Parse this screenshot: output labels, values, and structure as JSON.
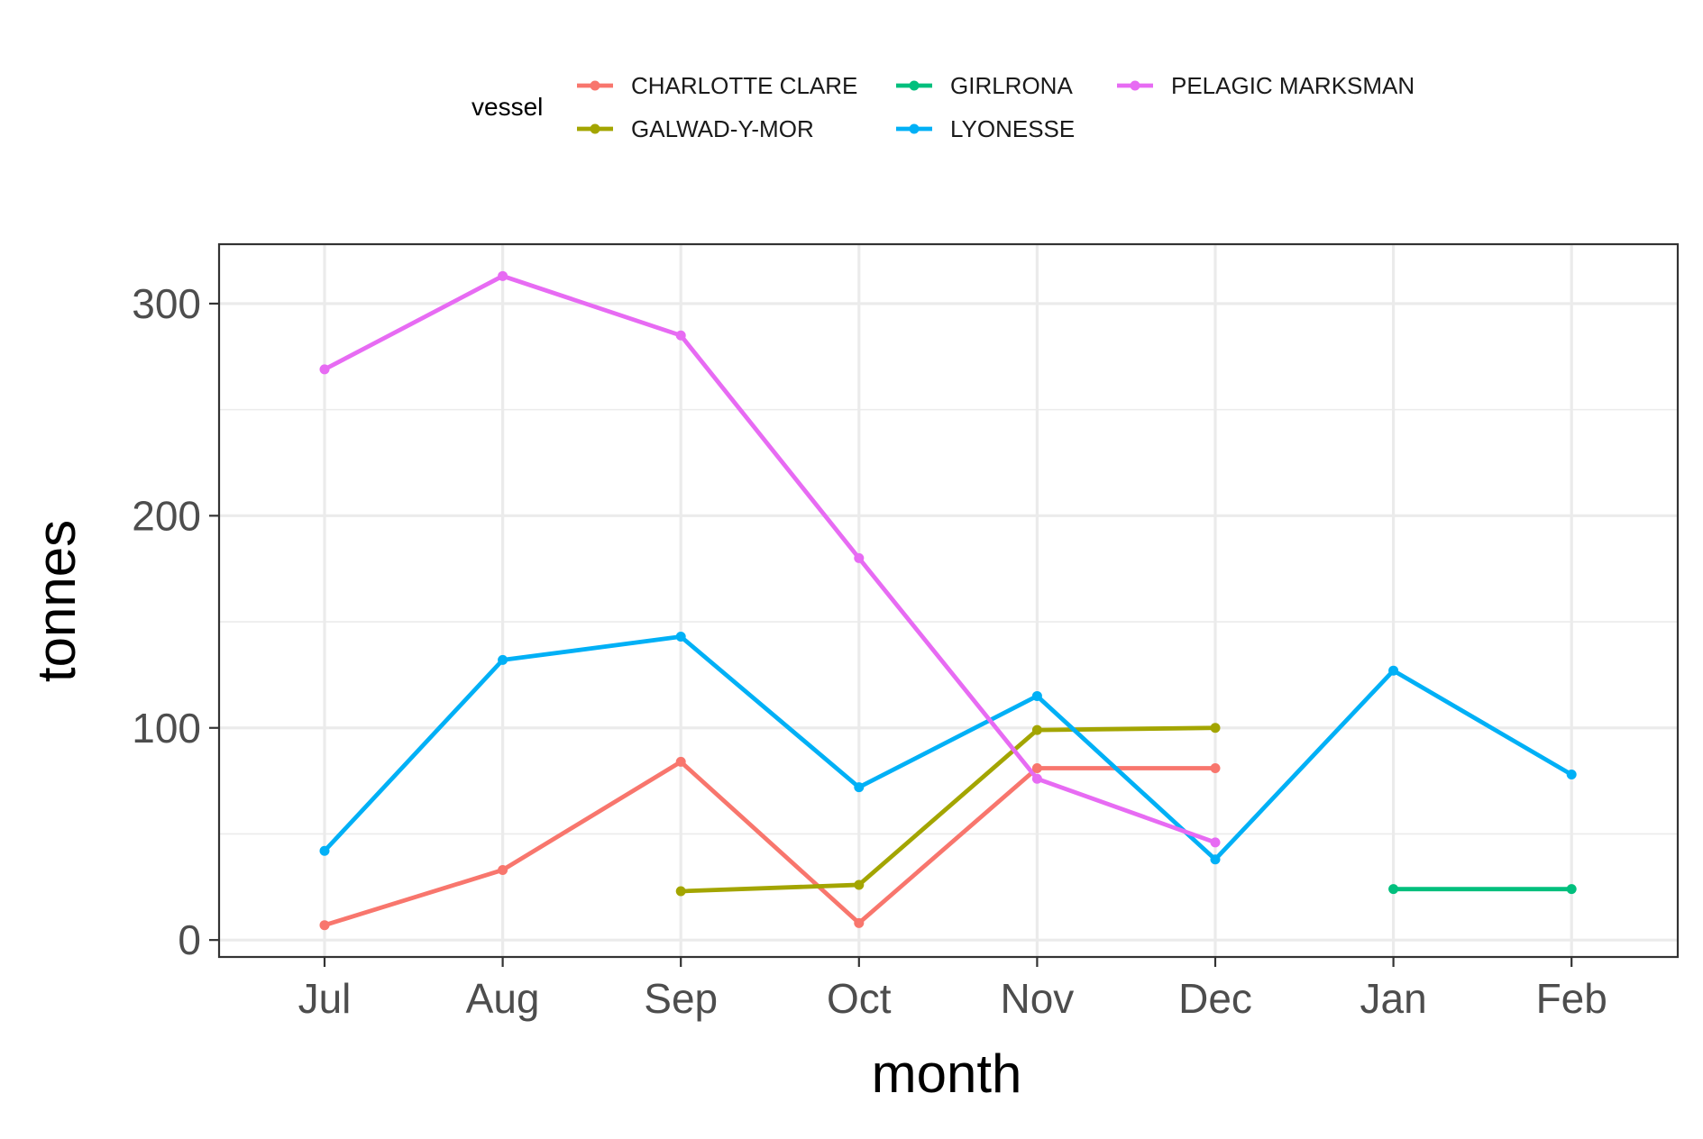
{
  "chart_data": {
    "type": "line",
    "title": "",
    "xlabel": "month",
    "ylabel": "tonnes",
    "categories": [
      "Jul",
      "Aug",
      "Sep",
      "Oct",
      "Nov",
      "Dec",
      "Jan",
      "Feb"
    ],
    "ylim": [
      -8,
      328
    ],
    "yticks": [
      0,
      100,
      200,
      300
    ],
    "grid": true,
    "legend": {
      "title": "vessel",
      "position": "top",
      "entries": [
        "CHARLOTTE CLARE",
        "GALWAD-Y-MOR",
        "GIRLRONA",
        "LYONESSE",
        "PELAGIC MARKSMAN"
      ]
    },
    "series": [
      {
        "name": "CHARLOTTE CLARE",
        "color": "#F8766D",
        "values": [
          7,
          33,
          84,
          8,
          81,
          81,
          null,
          null
        ]
      },
      {
        "name": "GALWAD-Y-MOR",
        "color": "#A3A500",
        "values": [
          null,
          null,
          23,
          26,
          99,
          100,
          null,
          null
        ]
      },
      {
        "name": "GIRLRONA",
        "color": "#00BF7D",
        "values": [
          null,
          null,
          null,
          null,
          null,
          null,
          24,
          24
        ]
      },
      {
        "name": "LYONESSE",
        "color": "#00B0F6",
        "values": [
          42,
          132,
          143,
          72,
          115,
          38,
          127,
          78
        ]
      },
      {
        "name": "PELAGIC MARKSMAN",
        "color": "#E76BF3",
        "values": [
          269,
          313,
          285,
          180,
          76,
          46,
          null,
          null
        ]
      }
    ]
  }
}
